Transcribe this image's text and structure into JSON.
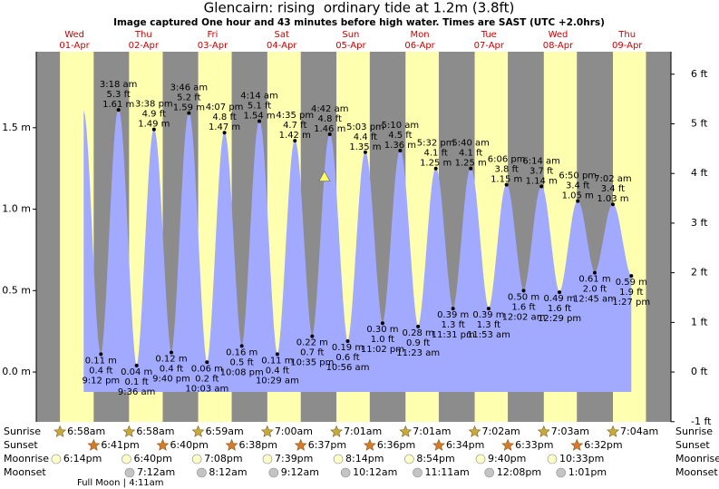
{
  "chart_data": {
    "type": "area",
    "title": "Glencairn: rising  ordinary tide at 1.2m (3.8ft)",
    "subtitle": "Image captured One hour and 43 minutes before high water. Times are SAST (UTC +2.0hrs)",
    "color": "#a2aaff",
    "day_color": "#ffffb0",
    "night_color": "#8c8c8c",
    "day_label_color": "#cc0000",
    "ylim": [
      -0.306,
      1.967
    ],
    "yticks": [
      {
        "value": 1.5,
        "label": "1.5 m"
      },
      {
        "value": 1.0,
        "label": "1.0 m"
      },
      {
        "value": 0.5,
        "label": "0.5 m"
      },
      {
        "value": 0,
        "label": "0.0 m"
      }
    ],
    "y2lim": [
      -1.004,
      6.453
    ],
    "y2ticks": [
      {
        "value": 6,
        "label": "6 ft"
      },
      {
        "value": 5,
        "label": "5 ft"
      },
      {
        "value": 4,
        "label": "4 ft"
      },
      {
        "value": 3,
        "label": "3 ft"
      },
      {
        "value": 2,
        "label": "2 ft"
      },
      {
        "value": 1,
        "label": "1 ft"
      },
      {
        "value": 0,
        "label": "0 ft"
      },
      {
        "value": -1,
        "label": "-1 ft"
      }
    ],
    "days": [
      {
        "weekday": "Wed",
        "date": "01-Apr"
      },
      {
        "weekday": "Thu",
        "date": "02-Apr"
      },
      {
        "weekday": "Fri",
        "date": "03-Apr"
      },
      {
        "weekday": "Sat",
        "date": "04-Apr"
      },
      {
        "weekday": "Sun",
        "date": "05-Apr"
      },
      {
        "weekday": "Mon",
        "date": "06-Apr"
      },
      {
        "weekday": "Tue",
        "date": "07-Apr"
      },
      {
        "weekday": "Wed",
        "date": "08-Apr"
      },
      {
        "weekday": "Thu",
        "date": "09-Apr"
      }
    ],
    "tides": [
      {
        "day": "01-Apr",
        "time": "9:12 pm",
        "value": 0.11,
        "value_label": "0.11 m",
        "feet": 0.4,
        "feet_label": "0.4 ft"
      },
      {
        "day": "02-Apr",
        "time": "3:18 am",
        "value": 1.61,
        "value_label": "1.61 m",
        "feet": 5.3,
        "feet_label": "5.3 ft"
      },
      {
        "day": "02-Apr",
        "time": "9:36 am",
        "value": 0.04,
        "value_label": "0.04 m",
        "feet": 0.1,
        "feet_label": "0.1 ft"
      },
      {
        "day": "02-Apr",
        "time": "3:38 pm",
        "value": 1.49,
        "value_label": "1.49 m",
        "feet": 4.9,
        "feet_label": "4.9 ft"
      },
      {
        "day": "02-Apr",
        "time": "9:40 pm",
        "value": 0.12,
        "value_label": "0.12 m",
        "feet": 0.4,
        "feet_label": "0.4 ft"
      },
      {
        "day": "03-Apr",
        "time": "3:46 am",
        "value": 1.59,
        "value_label": "1.59 m",
        "feet": 5.2,
        "feet_label": "5.2 ft"
      },
      {
        "day": "03-Apr",
        "time": "10:03 am",
        "value": 0.06,
        "value_label": "0.06 m",
        "feet": 0.2,
        "feet_label": "0.2 ft"
      },
      {
        "day": "03-Apr",
        "time": "4:07 pm",
        "value": 1.47,
        "value_label": "1.47 m",
        "feet": 4.8,
        "feet_label": "4.8 ft"
      },
      {
        "day": "03-Apr",
        "time": "10:08 pm",
        "value": 0.16,
        "value_label": "0.16 m",
        "feet": 0.5,
        "feet_label": "0.5 ft"
      },
      {
        "day": "04-Apr",
        "time": "4:14 am",
        "value": 1.54,
        "value_label": "1.54 m",
        "feet": 5.1,
        "feet_label": "5.1 ft"
      },
      {
        "day": "04-Apr",
        "time": "10:29 am",
        "value": 0.11,
        "value_label": "0.11 m",
        "feet": 0.4,
        "feet_label": "0.4 ft"
      },
      {
        "day": "04-Apr",
        "time": "4:35 pm",
        "value": 1.42,
        "value_label": "1.42 m",
        "feet": 4.7,
        "feet_label": "4.7 ft"
      },
      {
        "day": "04-Apr",
        "time": "10:35 pm",
        "value": 0.22,
        "value_label": "0.22 m",
        "feet": 0.7,
        "feet_label": "0.7 ft"
      },
      {
        "day": "05-Apr",
        "time": "4:42 am",
        "value": 1.46,
        "value_label": "1.46 m",
        "feet": 4.8,
        "feet_label": "4.8 ft"
      },
      {
        "day": "05-Apr",
        "time": "10:56 am",
        "value": 0.19,
        "value_label": "0.19 m",
        "feet": 0.6,
        "feet_label": "0.6 ft"
      },
      {
        "day": "05-Apr",
        "time": "5:03 pm",
        "value": 1.35,
        "value_label": "1.35 m",
        "feet": 4.4,
        "feet_label": "4.4 ft"
      },
      {
        "day": "05-Apr",
        "time": "11:02 pm",
        "value": 0.3,
        "value_label": "0.30 m",
        "feet": 1.0,
        "feet_label": "1.0 ft"
      },
      {
        "day": "06-Apr",
        "time": "5:10 am",
        "value": 1.36,
        "value_label": "1.36 m",
        "feet": 4.5,
        "feet_label": "4.5 ft"
      },
      {
        "day": "06-Apr",
        "time": "11:23 am",
        "value": 0.28,
        "value_label": "0.28 m",
        "feet": 0.9,
        "feet_label": "0.9 ft"
      },
      {
        "day": "06-Apr",
        "time": "5:32 pm",
        "value": 1.25,
        "value_label": "1.25 m",
        "feet": 4.1,
        "feet_label": "4.1 ft"
      },
      {
        "day": "06-Apr",
        "time": "11:31 pm",
        "value": 0.39,
        "value_label": "0.39 m",
        "feet": 1.3,
        "feet_label": "1.3 ft"
      },
      {
        "day": "07-Apr",
        "time": "5:40 am",
        "value": 1.25,
        "value_label": "1.25 m",
        "feet": 4.1,
        "feet_label": "4.1 ft"
      },
      {
        "day": "07-Apr",
        "time": "11:53 am",
        "value": 0.39,
        "value_label": "0.39 m",
        "feet": 1.3,
        "feet_label": "1.3 ft"
      },
      {
        "day": "07-Apr",
        "time": "6:06 pm",
        "value": 1.15,
        "value_label": "1.15 m",
        "feet": 3.8,
        "feet_label": "3.8 ft"
      },
      {
        "day": "08-Apr",
        "time": "12:02 am",
        "value": 0.5,
        "value_label": "0.50 m",
        "feet": 1.6,
        "feet_label": "1.6 ft"
      },
      {
        "day": "08-Apr",
        "time": "6:14 am",
        "value": 1.14,
        "value_label": "1.14 m",
        "feet": 3.7,
        "feet_label": "3.7 ft"
      },
      {
        "day": "08-Apr",
        "time": "12:29 pm",
        "value": 0.49,
        "value_label": "0.49 m",
        "feet": 1.6,
        "feet_label": "1.6 ft"
      },
      {
        "day": "08-Apr",
        "time": "6:50 pm",
        "value": 1.05,
        "value_label": "1.05 m",
        "feet": 3.4,
        "feet_label": "3.4 ft"
      },
      {
        "day": "09-Apr",
        "time": "12:45 am",
        "value": 0.61,
        "value_label": "0.61 m",
        "feet": 2.0,
        "feet_label": "2.0 ft"
      },
      {
        "day": "09-Apr",
        "time": "7:02 am",
        "value": 1.03,
        "value_label": "1.03 m",
        "feet": 3.4,
        "feet_label": "3.4 ft"
      },
      {
        "day": "09-Apr",
        "time": "1:27 pm",
        "value": 0.59,
        "value_label": "0.59 m",
        "feet": 1.9,
        "feet_label": "1.9 ft"
      }
    ],
    "current": {
      "value": 1.2,
      "day": "05-Apr",
      "color": "#ffff60"
    },
    "events": [
      {
        "name": "Sunrise",
        "icon": "sun-rise",
        "color": "#c9a93a",
        "days": [
          "01-Apr",
          "02-Apr",
          "03-Apr",
          "04-Apr",
          "05-Apr",
          "06-Apr",
          "07-Apr",
          "08-Apr",
          "09-Apr"
        ],
        "times": [
          "6:58am",
          "6:58am",
          "6:59am",
          "7:00am",
          "7:01am",
          "7:01am",
          "7:02am",
          "7:03am",
          "7:04am"
        ]
      },
      {
        "name": "Sunset",
        "icon": "sun-set",
        "color": "#d8782a",
        "days": [
          "01-Apr",
          "02-Apr",
          "03-Apr",
          "04-Apr",
          "05-Apr",
          "06-Apr",
          "07-Apr",
          "08-Apr"
        ],
        "times": [
          "6:41pm",
          "6:40pm",
          "6:38pm",
          "6:37pm",
          "6:36pm",
          "6:34pm",
          "6:33pm",
          "6:32pm"
        ]
      },
      {
        "name": "Moonrise",
        "icon": "moon-rise",
        "color": "#ffffc8",
        "days": [
          "01-Apr",
          "02-Apr",
          "03-Apr",
          "04-Apr",
          "05-Apr",
          "06-Apr",
          "07-Apr",
          "08-Apr"
        ],
        "times": [
          "6:14pm",
          "6:40pm",
          "7:08pm",
          "7:39pm",
          "8:14pm",
          "8:54pm",
          "9:40pm",
          "10:33pm"
        ]
      },
      {
        "name": "Moonset",
        "icon": "moon-set",
        "color": "#c4c4c4",
        "days": [
          "02-Apr",
          "03-Apr",
          "04-Apr",
          "05-Apr",
          "06-Apr",
          "07-Apr",
          "08-Apr"
        ],
        "times": [
          "7:12am",
          "8:12am",
          "9:12am",
          "10:12am",
          "11:11am",
          "12:08pm",
          "1:01pm"
        ]
      }
    ],
    "moon_phase": "Full Moon | 4:11am"
  }
}
